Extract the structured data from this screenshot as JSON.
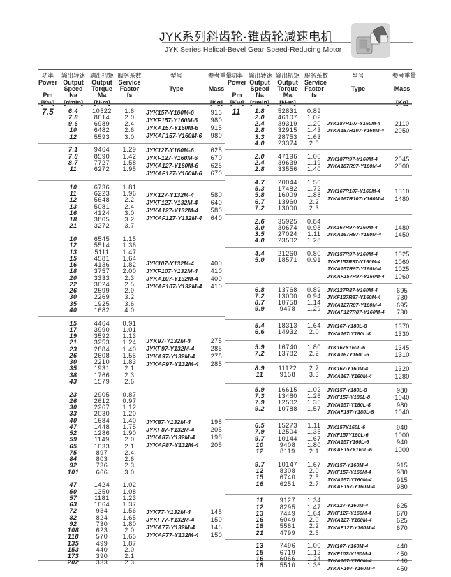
{
  "title": "JYK系列斜齿轮-锥齿轮减速电机",
  "subtitle": "JYK Series Helical-Bevel Gear Speed-Reducing Motor",
  "header": {
    "power": {
      "cn": "功率",
      "l1": "Power",
      "l2": "",
      "l3": "Pm",
      "l4": "[Kw]"
    },
    "speed": {
      "cn": "输出转速",
      "l1": "Output",
      "l2": "Speed",
      "l3": "Na",
      "l4": "[r/min]"
    },
    "torque": {
      "cn": "输出扭矩",
      "l1": "Output",
      "l2": "Torque",
      "l3": "Ma",
      "l4": "[N·m]"
    },
    "service": {
      "cn": "服务系数",
      "l1": "Service",
      "l2": "Factor",
      "l3": "fs",
      "l4": ""
    },
    "type": {
      "cn": "型号",
      "l1": "",
      "l2": "Type",
      "l3": "",
      "l4": ""
    },
    "mass": {
      "cn": "参考重量",
      "l1": "",
      "l2": "Mass",
      "l3": "",
      "l4": "[Kg]"
    }
  },
  "left": {
    "groups": [
      {
        "power": "7.5",
        "rows": [
          [
            "6.4",
            "10522",
            "1.6"
          ],
          [
            "7.8",
            "8614",
            "2.0"
          ],
          [
            "9.6",
            "6989",
            "2.4"
          ],
          [
            "10",
            "6482",
            "2.6"
          ],
          [
            "12",
            "5593",
            "3.0"
          ]
        ],
        "models": [
          [
            "JYK157-Y160M-6",
            "915"
          ],
          [
            "JYKF157-Y160M-6",
            "980"
          ],
          [
            "JYKA157-Y160M-6",
            "915"
          ],
          [
            "JYKAF157-Y160M-6",
            "980"
          ]
        ]
      },
      {
        "power": "",
        "rows": [
          [
            "7.1",
            "9464",
            "1.29"
          ],
          [
            "7.8",
            "8590",
            "1.42"
          ],
          [
            "8.7",
            "7727",
            "1.58"
          ],
          [
            "11",
            "6272",
            "1.95"
          ]
        ],
        "models": [
          [
            "JYK127-Y160M-6",
            "625"
          ],
          [
            "JYKF127-Y160M-6",
            "670"
          ],
          [
            "JYKA127-Y160M-6",
            "625"
          ],
          [
            "JYKAF127-Y160M-6",
            "670"
          ]
        ]
      },
      {
        "power": "",
        "rows": [
          [
            "10",
            "6736",
            "1.81"
          ],
          [
            "11",
            "6223",
            "1.96"
          ],
          [
            "12",
            "5648",
            "2.2"
          ],
          [
            "13",
            "5081",
            "2.4"
          ],
          [
            "16",
            "4124",
            "3.0"
          ],
          [
            "18",
            "3805",
            "3.2"
          ],
          [
            "21",
            "3272",
            "3.7"
          ]
        ],
        "models": [
          [
            "JYK127-Y132M-4",
            "580"
          ],
          [
            "JYKF127-Y132M-4",
            "640"
          ],
          [
            "JYKA127-Y132M-4",
            "580"
          ],
          [
            "JYKAF127-Y132M-4",
            "640"
          ]
        ]
      },
      {
        "power": "",
        "rows": [
          [
            "10",
            "6545",
            "1.15"
          ],
          [
            "12",
            "5514",
            "1.36"
          ],
          [
            "13",
            "5111",
            "1.47"
          ],
          [
            "15",
            "4581",
            "1.64"
          ],
          [
            "16",
            "4136",
            "1.82"
          ],
          [
            "18",
            "3757",
            "2.00"
          ],
          [
            "20",
            "3333",
            "2.3"
          ],
          [
            "22",
            "3024",
            "2.5"
          ],
          [
            "26",
            "2599",
            "2.9"
          ],
          [
            "30",
            "2269",
            "3.2"
          ],
          [
            "35",
            "1925",
            "3.6"
          ],
          [
            "40",
            "1682",
            "4.0"
          ]
        ],
        "models": [
          [
            "JYK107-Y132M-4",
            "400"
          ],
          [
            "JYKF107-Y132M-4",
            "410"
          ],
          [
            "JYKA107-Y132M-4",
            "400"
          ],
          [
            "JYKAF107-Y132M-4",
            "410"
          ]
        ]
      },
      {
        "power": "",
        "rows": [
          [
            "15",
            "4464",
            "0.91"
          ],
          [
            "17",
            "3990",
            "1.01"
          ],
          [
            "19",
            "3592",
            "1.13"
          ],
          [
            "21",
            "3253",
            "1.24"
          ],
          [
            "23",
            "2884",
            "1.40"
          ],
          [
            "26",
            "2608",
            "1.55"
          ],
          [
            "30",
            "2210",
            "1.83"
          ],
          [
            "35",
            "1931",
            "2.1"
          ],
          [
            "38",
            "1766",
            "2.3"
          ],
          [
            "43",
            "1579",
            "2.6"
          ]
        ],
        "models": [
          [
            "JYK97-Y132M-4",
            "275"
          ],
          [
            "JYKF97-Y132M-4",
            "285"
          ],
          [
            "JYKA97-Y132M-4",
            "275"
          ],
          [
            "JYKAF97-Y132M-4",
            "285"
          ]
        ]
      },
      {
        "power": "",
        "rows": [
          [
            "23",
            "2905",
            "0.87"
          ],
          [
            "26",
            "2612",
            "0.97"
          ],
          [
            "30",
            "2267",
            "1.12"
          ],
          [
            "33",
            "2030",
            "1.20"
          ],
          [
            "40",
            "1684",
            "1.40"
          ],
          [
            "47",
            "1448",
            "1.75"
          ],
          [
            "52",
            "1286",
            "1.90"
          ],
          [
            "59",
            "1149",
            "2.0"
          ],
          [
            "65",
            "1033",
            "2.1"
          ],
          [
            "75",
            "897",
            "2.4"
          ],
          [
            "84",
            "803",
            "2.6"
          ],
          [
            "92",
            "736",
            "2.3"
          ],
          [
            "101",
            "666",
            "3.0"
          ]
        ],
        "models": [
          [
            "JYK87-Y132M-4",
            "198"
          ],
          [
            "JYKF87-Y132M-4",
            "205"
          ],
          [
            "JYKA87-Y132M-4",
            "198"
          ],
          [
            "JYKAF87-Y132M-4",
            "205"
          ]
        ]
      },
      {
        "power": "",
        "rows": [
          [
            "47",
            "1424",
            "1.02"
          ],
          [
            "50",
            "1350",
            "1.08"
          ],
          [
            "57",
            "1181",
            "1.23"
          ],
          [
            "63",
            "1064",
            "1.37"
          ],
          [
            "72",
            "934",
            "1.56"
          ],
          [
            "82",
            "824",
            "1.65"
          ],
          [
            "92",
            "730",
            "1.80"
          ],
          [
            "108",
            "623",
            "2.0"
          ],
          [
            "118",
            "570",
            "1.65"
          ],
          [
            "135",
            "499",
            "1.87"
          ],
          [
            "153",
            "440",
            "2.0"
          ],
          [
            "173",
            "390",
            "2.1"
          ],
          [
            "202",
            "333",
            "2.3"
          ]
        ],
        "models": [
          [
            "JYK77-Y132M-4",
            "145"
          ],
          [
            "JYKF77-Y132M-4",
            "150"
          ],
          [
            "JYKA77-Y132M-4",
            "145"
          ],
          [
            "JYKAF77-Y132M-4",
            "150"
          ]
        ]
      }
    ]
  },
  "right": {
    "groups": [
      {
        "power": "11",
        "rows": [
          [
            "1.8",
            "52831",
            "0.89"
          ],
          [
            "2.0",
            "46107",
            "1.02"
          ],
          [
            "2.4",
            "39319",
            "1.20"
          ],
          [
            "2.8",
            "32915",
            "1.43"
          ],
          [
            "3.3",
            "28753",
            "1.63"
          ],
          [
            "4.0",
            "23374",
            "2.0"
          ]
        ],
        "models": [
          [
            "JYK187R107-Y160M-4",
            "2110"
          ],
          [
            "JYKA187R107-Y160M-4",
            "2050"
          ]
        ]
      },
      {
        "power": "",
        "rows": [
          [
            "2.0",
            "47196",
            "1.00"
          ],
          [
            "2.4",
            "39639",
            "1.19"
          ],
          [
            "2.8",
            "33556",
            "1.40"
          ]
        ],
        "models": [
          [
            "JYK187R97-Y160M-4",
            "2045"
          ],
          [
            "JYKA187R97-Y160M-4",
            "2000"
          ]
        ]
      },
      {
        "power": "",
        "rows": [
          [
            "4.7",
            "20044",
            "1.50"
          ],
          [
            "5.3",
            "17482",
            "1.72"
          ],
          [
            "5.8",
            "16009",
            "1.88"
          ],
          [
            "6.7",
            "13960",
            "2.2"
          ],
          [
            "7.2",
            "13000",
            "2.3"
          ]
        ],
        "models": [
          [
            "JYK167R107-Y160M-4",
            "1510"
          ],
          [
            "JYKA167R107-Y160M-4",
            "1480"
          ]
        ]
      },
      {
        "power": "",
        "rows": [
          [
            "2.6",
            "35925",
            "0.84"
          ],
          [
            "3.0",
            "30674",
            "0.98"
          ],
          [
            "3.5",
            "27024",
            "1.11"
          ],
          [
            "4.0",
            "23502",
            "1.28"
          ]
        ],
        "models": [
          [
            "JYK167R97-Y160M-4",
            "1480"
          ],
          [
            "JYKA167R97-Y160M-4",
            "1450"
          ]
        ]
      },
      {
        "power": "",
        "rows": [
          [
            "4.4",
            "21260",
            "0.80"
          ],
          [
            "5.0",
            "18571",
            "0.91"
          ]
        ],
        "models": [
          [
            "JYK157R97-Y160M-4",
            "1025"
          ],
          [
            "JYKF157R97-Y160M-4",
            "1060"
          ],
          [
            "JYKA157R97-Y160M-4",
            "1025"
          ],
          [
            "JYKAF157R97-Y160M-4",
            "1060"
          ]
        ]
      },
      {
        "power": "",
        "rows": [
          [
            "6.8",
            "13768",
            "0.89"
          ],
          [
            "7.2",
            "13000",
            "0.94"
          ],
          [
            "8.7",
            "10758",
            "1.14"
          ],
          [
            "9.9",
            "9478",
            "1.29"
          ]
        ],
        "models": [
          [
            "JYK127R87-Y160M-4",
            "695"
          ],
          [
            "JYKF127R87-Y160M-4",
            "730"
          ],
          [
            "JYKA127R87-Y160M-4",
            "695"
          ],
          [
            "JYKAF127R87-Y160M-4",
            "730"
          ]
        ]
      },
      {
        "power": "",
        "rows": [
          [
            "5.4",
            "18313",
            "1.64"
          ],
          [
            "6.6",
            "14932",
            "2.0"
          ]
        ],
        "models": [
          [
            "JYK167-Y180L-8",
            "1370"
          ],
          [
            "JYKA167-Y180L-8",
            "1330"
          ]
        ]
      },
      {
        "power": "",
        "rows": [
          [
            "5.9",
            "16740",
            "1.80"
          ],
          [
            "7.2",
            "13782",
            "2.2"
          ]
        ],
        "models": [
          [
            "JYK167Y160L-6",
            "1345"
          ],
          [
            "JYKA167Y160L-6",
            "1310"
          ]
        ]
      },
      {
        "power": "",
        "rows": [
          [
            "8.9",
            "11122",
            "2.7"
          ],
          [
            "11",
            "9158",
            "3.3"
          ]
        ],
        "models": [
          [
            "JYK167-Y160M-4",
            "1320"
          ],
          [
            "JYKA167-Y160M-4",
            "1280"
          ]
        ]
      },
      {
        "power": "",
        "rows": [
          [
            "5.9",
            "16615",
            "1.02"
          ],
          [
            "7.3",
            "13480",
            "1.26"
          ],
          [
            "7.9",
            "12502",
            "1.35"
          ],
          [
            "9.2",
            "10788",
            "1.57"
          ]
        ],
        "models": [
          [
            "JYK157-Y180L-8",
            "980"
          ],
          [
            "JYKF157-Y180L-8",
            "1040"
          ],
          [
            "JYKA157-Y180L-8",
            "980"
          ],
          [
            "JYKAF157-Y180L-8",
            "1040"
          ]
        ]
      },
      {
        "power": "",
        "rows": [
          [
            "6.5",
            "15273",
            "1.11"
          ],
          [
            "7.9",
            "12504",
            "1.35"
          ],
          [
            "9.7",
            "10144",
            "1.67"
          ],
          [
            "10",
            "9408",
            "1.80"
          ],
          [
            "12",
            "8119",
            "2.1"
          ]
        ],
        "models": [
          [
            "JYK157Y160L-6",
            "940"
          ],
          [
            "JYKF157Y160L-6",
            "1000"
          ],
          [
            "JYKA157Y160L-6",
            "940"
          ],
          [
            "JYKAF157Y160L-6",
            "1000"
          ]
        ]
      },
      {
        "power": "",
        "rows": [
          [
            "9.7",
            "10147",
            "1.67"
          ],
          [
            "12",
            "8308",
            "2.0"
          ],
          [
            "15",
            "6740",
            "2.5"
          ],
          [
            "16",
            "6251",
            "2.7"
          ]
        ],
        "models": [
          [
            "JYK157-Y160M-4",
            "915"
          ],
          [
            "JYKF157-Y160M-4",
            "980"
          ],
          [
            "JYKA157-Y160M-4",
            "915"
          ],
          [
            "JYKAF157-Y160M-4",
            "980"
          ]
        ]
      },
      {
        "power": "",
        "rows": [
          [
            "11",
            "9127",
            "1.34"
          ],
          [
            "12",
            "8295",
            "1.47"
          ],
          [
            "13",
            "7449",
            "1.64"
          ],
          [
            "16",
            "6049",
            "2.0"
          ],
          [
            "18",
            "5581",
            "2.2"
          ],
          [
            "21",
            "4799",
            "2.5"
          ]
        ],
        "models": [
          [
            "JYK127-Y160M-4",
            "625"
          ],
          [
            "JYKF127-Y160M-4",
            "670"
          ],
          [
            "JYKA127-Y160M-4",
            "625"
          ],
          [
            "JYKAF127-Y160M-4",
            "670"
          ]
        ]
      },
      {
        "power": "",
        "rows": [
          [
            "13",
            "7496",
            "1.00"
          ],
          [
            "15",
            "6719",
            "1.12"
          ],
          [
            "16",
            "6066",
            "1.24"
          ],
          [
            "18",
            "5510",
            "1.36"
          ]
        ],
        "models": [
          [
            "JYK107-Y160M-4",
            "440"
          ],
          [
            "JYKF107-Y160M-4",
            "450"
          ],
          [
            "JYKA107-Y160M-4",
            "440"
          ],
          [
            "JYKAF107-Y160M-4",
            "450"
          ]
        ]
      }
    ]
  }
}
